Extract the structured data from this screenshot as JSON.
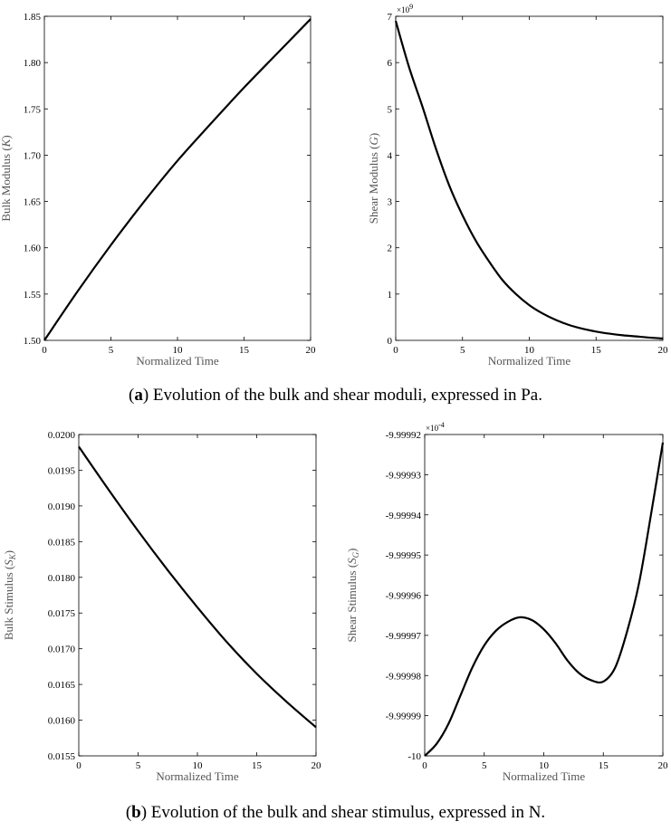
{
  "chart_data": [
    {
      "type": "line",
      "panel": "a-left",
      "xlabel": "Normalized Time",
      "ylabel_text": "Bulk Modulus (",
      "ylabel_symbol": "K",
      "ylabel_close": ")",
      "xlim": [
        0,
        20
      ],
      "ylim": [
        1.5,
        1.85
      ],
      "xticks": [
        0,
        5,
        10,
        15,
        20
      ],
      "xtick_labels": [
        "0",
        "5",
        "10",
        "15",
        "20"
      ],
      "yticks": [
        1.5,
        1.55,
        1.6,
        1.65,
        1.7,
        1.75,
        1.8,
        1.85
      ],
      "ytick_labels": [
        "1.50",
        "1.55",
        "1.60",
        "1.65",
        "1.70",
        "1.75",
        "1.80",
        "1.85"
      ],
      "x": [
        0,
        2.5,
        5,
        7.5,
        10,
        12.5,
        15,
        17.5,
        20
      ],
      "y": [
        1.5,
        1.553,
        1.603,
        1.65,
        1.694,
        1.734,
        1.773,
        1.81,
        1.847
      ],
      "grid": false
    },
    {
      "type": "line",
      "panel": "a-right",
      "xlabel": "Normalized Time",
      "ylabel_text": "Shear Modulus (",
      "ylabel_symbol": "G",
      "ylabel_close": ")",
      "multiplier_base": "×10",
      "multiplier_exp": "9",
      "xlim": [
        0,
        20
      ],
      "ylim": [
        0,
        7
      ],
      "xticks": [
        0,
        5,
        10,
        15,
        20
      ],
      "xtick_labels": [
        "0",
        "5",
        "10",
        "15",
        "20"
      ],
      "yticks": [
        0,
        1,
        2,
        3,
        4,
        5,
        6,
        7
      ],
      "ytick_labels": [
        "0",
        "1",
        "2",
        "3",
        "4",
        "5",
        "6",
        "7"
      ],
      "x": [
        0,
        1,
        2,
        3,
        4,
        5,
        6,
        7,
        8,
        9,
        10,
        11,
        12,
        13,
        14,
        15,
        16,
        17,
        18,
        19,
        20
      ],
      "y": [
        6.9,
        5.9,
        5.05,
        4.15,
        3.35,
        2.7,
        2.15,
        1.7,
        1.3,
        1.0,
        0.76,
        0.58,
        0.44,
        0.33,
        0.25,
        0.19,
        0.145,
        0.11,
        0.085,
        0.06,
        0.04
      ],
      "grid": false
    },
    {
      "type": "line",
      "panel": "b-left",
      "xlabel": "Normalized Time",
      "ylabel_text": "Bulk Stimulus (",
      "ylabel_symbol": "S",
      "ylabel_sub": "K",
      "ylabel_close": ")",
      "xlim": [
        0,
        20
      ],
      "ylim": [
        0.0155,
        0.02
      ],
      "xticks": [
        0,
        5,
        10,
        15,
        20
      ],
      "xtick_labels": [
        "0",
        "5",
        "10",
        "15",
        "20"
      ],
      "yticks": [
        0.0155,
        0.016,
        0.0165,
        0.017,
        0.0175,
        0.018,
        0.0185,
        0.019,
        0.0195,
        0.02
      ],
      "ytick_labels": [
        "0.0155",
        "0.0160",
        "0.0165",
        "0.0170",
        "0.0175",
        "0.0180",
        "0.0185",
        "0.0190",
        "0.0195",
        "0.0200"
      ],
      "x": [
        0,
        2.5,
        5,
        7.5,
        10,
        12.5,
        15,
        17.5,
        20
      ],
      "y": [
        0.01983,
        0.01923,
        0.01865,
        0.0181,
        0.01758,
        0.01709,
        0.01665,
        0.01626,
        0.0159
      ],
      "grid": false
    },
    {
      "type": "line",
      "panel": "b-right",
      "xlabel": "Normalized Time",
      "ylabel_text": "Shear Stimulus (",
      "ylabel_symbol": "S",
      "ylabel_sub": "G",
      "ylabel_close": ")",
      "multiplier_base": "×10",
      "multiplier_exp": "-4",
      "xlim": [
        0,
        20
      ],
      "ylim": [
        -10,
        -9.99992
      ],
      "xticks": [
        0,
        5,
        10,
        15,
        20
      ],
      "xtick_labels": [
        "0",
        "5",
        "10",
        "15",
        "20"
      ],
      "yticks": [
        -10,
        -9.99999,
        -9.99998,
        -9.99997,
        -9.99996,
        -9.99995,
        -9.99994,
        -9.99993,
        -9.99992
      ],
      "ytick_labels": [
        "-10",
        "-9.99999",
        "-9.99998",
        "-9.99997",
        "-9.99996",
        "-9.99995",
        "-9.99994",
        "-9.99993",
        "-9.99992"
      ],
      "x": [
        0,
        1,
        2,
        3,
        4,
        5,
        6,
        7,
        8,
        9,
        10,
        11,
        12,
        13,
        14,
        15,
        16,
        17,
        18,
        19,
        20
      ],
      "y": [
        -10,
        -9.999997,
        -9.999992,
        -9.999985,
        -9.999978,
        -9.9999725,
        -9.9999688,
        -9.9999666,
        -9.9999655,
        -9.9999662,
        -9.9999685,
        -9.999972,
        -9.9999763,
        -9.9999795,
        -9.9999812,
        -9.9999815,
        -9.999978,
        -9.999969,
        -9.999957,
        -9.99994,
        -9.999922
      ],
      "grid": false
    }
  ],
  "captions": {
    "a": {
      "label": "a",
      "text": ") Evolution of the bulk and shear moduli, expressed in Pa."
    },
    "b": {
      "label": "b",
      "text": ") Evolution of the bulk and shear stimulus, expressed in N."
    }
  }
}
